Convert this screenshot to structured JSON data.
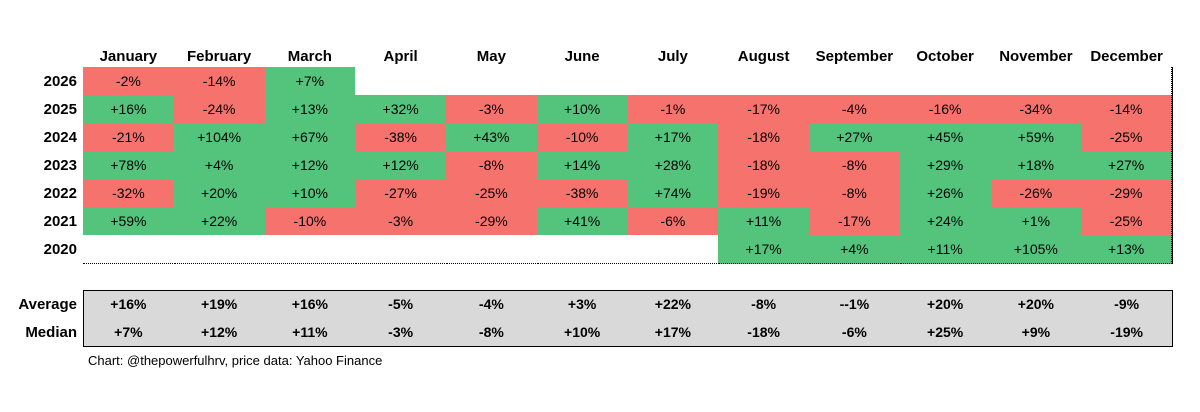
{
  "table": {
    "header": [
      "January",
      "February",
      "March",
      "April",
      "May",
      "June",
      "July",
      "August",
      "September",
      "October",
      "November",
      "December"
    ],
    "rows": [
      {
        "label": "2026",
        "cells": [
          "-2%",
          "-14%",
          "+7%",
          null,
          null,
          null,
          null,
          null,
          null,
          null,
          null,
          null
        ]
      },
      {
        "label": "2025",
        "cells": [
          "+16%",
          "-24%",
          "+13%",
          "+32%",
          "-3%",
          "+10%",
          "-1%",
          "-17%",
          "-4%",
          "-16%",
          "-34%",
          "-14%"
        ]
      },
      {
        "label": "2024",
        "cells": [
          "-21%",
          "+104%",
          "+67%",
          "-38%",
          "+43%",
          "-10%",
          "+17%",
          "-18%",
          "+27%",
          "+45%",
          "+59%",
          "-25%"
        ]
      },
      {
        "label": "2023",
        "cells": [
          "+78%",
          "+4%",
          "+12%",
          "+12%",
          "-8%",
          "+14%",
          "+28%",
          "-18%",
          "-8%",
          "+29%",
          "+18%",
          "+27%"
        ]
      },
      {
        "label": "2022",
        "cells": [
          "-32%",
          "+20%",
          "+10%",
          "-27%",
          "-25%",
          "-38%",
          "+74%",
          "-19%",
          "-8%",
          "+26%",
          "-26%",
          "-29%"
        ]
      },
      {
        "label": "2021",
        "cells": [
          "+59%",
          "+22%",
          "-10%",
          "-3%",
          "-29%",
          "+41%",
          "-6%",
          "+11%",
          "-17%",
          "+24%",
          "+1%",
          "-25%"
        ]
      },
      {
        "label": "2020",
        "cells": [
          null,
          null,
          null,
          null,
          null,
          null,
          null,
          "+17%",
          "+4%",
          "+11%",
          "+105%",
          "+13%"
        ]
      }
    ],
    "summary": [
      {
        "label": "Average",
        "cells": [
          "+16%",
          "+19%",
          "+16%",
          "-5%",
          "-4%",
          "+3%",
          "+22%",
          "-8%",
          "--1%",
          "+20%",
          "+20%",
          "-9%"
        ]
      },
      {
        "label": "Median",
        "cells": [
          "+7%",
          "+12%",
          "+11%",
          "-3%",
          "-8%",
          "+10%",
          "+17%",
          "-18%",
          "-6%",
          "+25%",
          "+9%",
          "-19%"
        ]
      }
    ],
    "colors": {
      "positive": "#54c47c",
      "negative": "#f6726c"
    },
    "footnote": "Chart: @thepowerfulhrv, price data: Yahoo Finance"
  }
}
